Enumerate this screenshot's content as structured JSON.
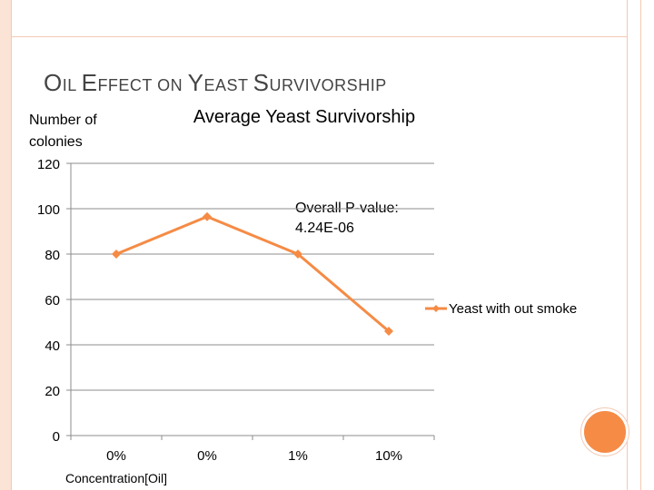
{
  "slide": {
    "title_segments": [
      {
        "text": "O",
        "big": true
      },
      {
        "text": "IL ",
        "big": false
      },
      {
        "text": "E",
        "big": true
      },
      {
        "text": "FFECT ON ",
        "big": false
      },
      {
        "text": "Y",
        "big": true
      },
      {
        "text": "EAST ",
        "big": false
      },
      {
        "text": "S",
        "big": true
      },
      {
        "text": "URVIVORSHIP",
        "big": false
      }
    ],
    "accent_color": "#f58b45"
  },
  "chart_data": {
    "type": "line",
    "title": "Average Yeast Survivorship",
    "ylabel_lines": [
      "Number of",
      "colonies"
    ],
    "xlabel": "Concentration[Oil]",
    "categories": [
      "0%",
      "0%",
      "1%",
      "10%"
    ],
    "ylim": [
      0,
      120
    ],
    "yticks": [
      0,
      20,
      40,
      60,
      80,
      100,
      120
    ],
    "grid": true,
    "legend_position": "right",
    "series": [
      {
        "name": "Yeast with out smoke",
        "values": [
          80,
          96.5,
          80,
          46
        ],
        "color": "#f58b45"
      }
    ],
    "annotation_lines": [
      "Overall P-value:",
      "4.24E-06"
    ]
  }
}
